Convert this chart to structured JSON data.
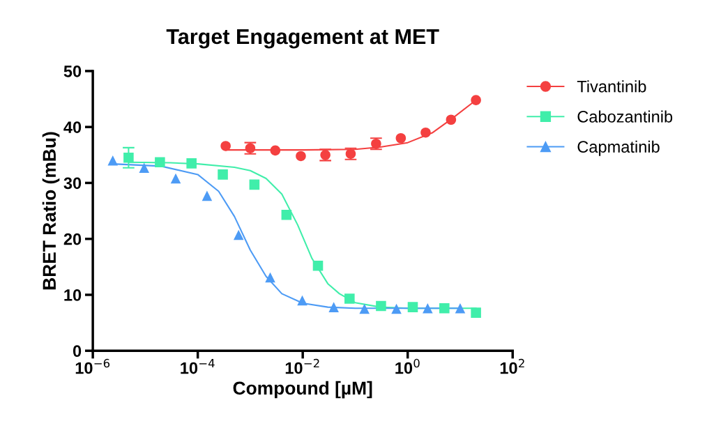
{
  "chart_data": {
    "type": "scatter",
    "title": "Target Engagement at MET",
    "xlabel": "Compound [µM]",
    "ylabel": "BRET Ratio (mBu)",
    "log": "x",
    "xlim": [
      1e-06,
      100
    ],
    "ylim": [
      0,
      50
    ],
    "xticks": [
      {
        "value": 1e-06,
        "label": "10$^{−6}$"
      },
      {
        "value": 0.0001,
        "label": "10$^{−4}$"
      },
      {
        "value": 0.01,
        "label": "10$^{−2}$"
      },
      {
        "value": 1,
        "label": "10$^{0}$"
      },
      {
        "value": 100,
        "label": "10$^{2}$"
      }
    ],
    "yticks": [
      0,
      10,
      20,
      30,
      40,
      50
    ],
    "grid": false,
    "legend": "right",
    "series": [
      {
        "name": "Tivantinib",
        "marker": "circle",
        "color": "#f44040",
        "x": [
          0.00034,
          0.001,
          0.003,
          0.0092,
          0.027,
          0.082,
          0.25,
          0.74,
          2.2,
          6.7,
          20
        ],
        "values": [
          36.6,
          36.2,
          35.8,
          34.8,
          35.0,
          35.2,
          37.0,
          38.0,
          39.0,
          41.3,
          44.8
        ],
        "errors": [
          null,
          1.0,
          null,
          null,
          1.0,
          1.0,
          1.0,
          null,
          null,
          null,
          null
        ]
      },
      {
        "name": "Cabozantinib",
        "marker": "square",
        "color": "#40eeaa",
        "x": [
          4.8e-06,
          1.9e-05,
          7.6e-05,
          0.0003,
          0.0012,
          0.0049,
          0.0195,
          0.078,
          0.31,
          1.25,
          5,
          20
        ],
        "values": [
          34.5,
          33.7,
          33.5,
          31.5,
          29.7,
          24.3,
          15.2,
          9.3,
          8.0,
          7.8,
          7.6,
          6.8
        ],
        "errors": [
          1.8,
          null,
          null,
          null,
          null,
          null,
          null,
          null,
          null,
          null,
          null,
          null
        ]
      },
      {
        "name": "Capmatinib",
        "marker": "triangle",
        "color": "#4d9bf5",
        "x": [
          2.4e-06,
          9.5e-06,
          3.8e-05,
          0.00015,
          0.0006,
          0.0024,
          0.0098,
          0.039,
          0.15,
          0.61,
          2.4,
          10
        ],
        "values": [
          34.0,
          32.7,
          30.8,
          27.7,
          20.7,
          13.1,
          9.0,
          7.8,
          7.5,
          7.5,
          7.6,
          7.6
        ]
      },
      {
        "type": "line",
        "color": "#f44040",
        "x": [
          0.00034,
          0.001,
          0.01,
          0.1,
          0.3,
          1,
          3,
          7,
          20
        ],
        "values": [
          35.9,
          35.9,
          35.9,
          36.0,
          36.4,
          37.2,
          39.0,
          41.5,
          44.8
        ]
      },
      {
        "type": "line",
        "color": "#40eeaa",
        "x": [
          4.8e-06,
          3e-05,
          0.0001,
          0.0005,
          0.001,
          0.002,
          0.004,
          0.008,
          0.015,
          0.03,
          0.05,
          0.1,
          0.3,
          1,
          20
        ],
        "values": [
          33.7,
          33.6,
          33.4,
          32.8,
          32.2,
          30.8,
          28.0,
          22.5,
          16.5,
          12.0,
          10.2,
          8.6,
          7.8,
          7.6,
          7.6
        ]
      },
      {
        "type": "line",
        "color": "#4d9bf5",
        "x": [
          2.4e-06,
          2e-05,
          0.0001,
          0.00025,
          0.0005,
          0.001,
          0.002,
          0.004,
          0.01,
          0.03,
          0.1,
          10
        ],
        "values": [
          33.4,
          33.0,
          31.5,
          28.5,
          24.0,
          18.0,
          13.3,
          10.2,
          8.5,
          7.8,
          7.6,
          7.6
        ]
      }
    ]
  }
}
